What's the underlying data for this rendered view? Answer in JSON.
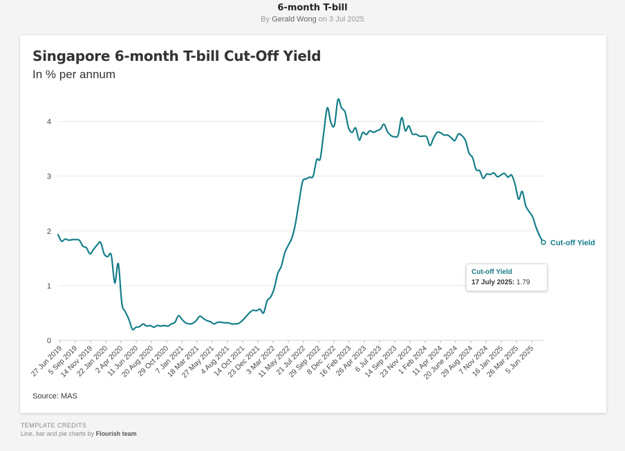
{
  "header": {
    "title": "6-month T-bill",
    "by_prefix": "By",
    "author": "Gerald Wong",
    "date": "on 3 Jul 2025"
  },
  "chart_data": {
    "type": "line",
    "title": "Singapore 6-month T-bill Cut-Off Yield",
    "subtitle": "In % per annum",
    "xlabel": "",
    "ylabel": "",
    "ylim": [
      0,
      4.5
    ],
    "yticks": [
      0,
      1,
      2,
      3,
      4
    ],
    "grid": true,
    "xtick_labels": [
      "27 Jun 2019",
      "5 Sep 2019",
      "14 Nov 2019",
      "22 Jan 2020",
      "2 Apr 2020",
      "11 Jun 2020",
      "20 Aug 2020",
      "29 Oct 2020",
      "7 Jan 2021",
      "18 Mar 2021",
      "27 May 2021",
      "4 Aug 2021",
      "14 Oct 2021",
      "23 Dec 2021",
      "3 Mar 2022",
      "11 May 2022",
      "21 Jul 2022",
      "29 Sep 2022",
      "8 Dec 2022",
      "16 Feb 2023",
      "26 Apr 2023",
      "6 Jul 2023",
      "14 Sep 2023",
      "23 Nov 2023",
      "1 Feb 2024",
      "11 Apr 2024",
      "20 June 2024",
      "29 Aug 2024",
      "7 Nov 2024",
      "16 Jan 2025",
      "26 Mar 2025",
      "5 Jun 2025"
    ],
    "series": [
      {
        "name": "Cut-off Yield",
        "color": "#137d88",
        "values": [
          1.93,
          1.81,
          1.85,
          1.83,
          1.84,
          1.84,
          1.83,
          1.72,
          1.69,
          1.58,
          1.66,
          1.74,
          1.79,
          1.58,
          1.53,
          1.56,
          1.05,
          1.4,
          0.68,
          0.52,
          0.38,
          0.2,
          0.24,
          0.25,
          0.3,
          0.26,
          0.27,
          0.24,
          0.27,
          0.26,
          0.27,
          0.26,
          0.3,
          0.33,
          0.45,
          0.38,
          0.32,
          0.3,
          0.31,
          0.36,
          0.44,
          0.4,
          0.36,
          0.34,
          0.3,
          0.33,
          0.33,
          0.32,
          0.32,
          0.3,
          0.3,
          0.31,
          0.36,
          0.43,
          0.5,
          0.55,
          0.54,
          0.57,
          0.5,
          0.72,
          0.79,
          0.95,
          1.22,
          1.35,
          1.6,
          1.74,
          1.87,
          2.13,
          2.52,
          2.9,
          2.95,
          2.98,
          3.0,
          3.3,
          3.32,
          3.8,
          4.25,
          3.98,
          3.93,
          4.4,
          4.25,
          4.17,
          3.88,
          3.8,
          3.88,
          3.66,
          3.8,
          3.76,
          3.83,
          3.8,
          3.83,
          3.86,
          3.95,
          3.81,
          3.74,
          3.72,
          3.75,
          4.07,
          3.83,
          3.92,
          3.77,
          3.77,
          3.73,
          3.73,
          3.72,
          3.56,
          3.7,
          3.8,
          3.79,
          3.75,
          3.75,
          3.7,
          3.65,
          3.77,
          3.74,
          3.65,
          3.42,
          3.34,
          3.12,
          3.1,
          2.96,
          3.04,
          3.03,
          3.06,
          2.99,
          3.02,
          3.05,
          2.98,
          3.02,
          2.85,
          2.58,
          2.72,
          2.46,
          2.35,
          2.25,
          2.05,
          1.9,
          1.79
        ],
        "end_label": "Cut-off Yield"
      }
    ],
    "tooltip": {
      "series": "Cut-off Yield",
      "date_label": "17 July 2025:",
      "value": "1.79"
    }
  },
  "source": "Source: MAS",
  "credits": {
    "heading": "TEMPLATE CREDITS",
    "text": "Line, bar and pie charts by",
    "brand": "Flourish team"
  }
}
